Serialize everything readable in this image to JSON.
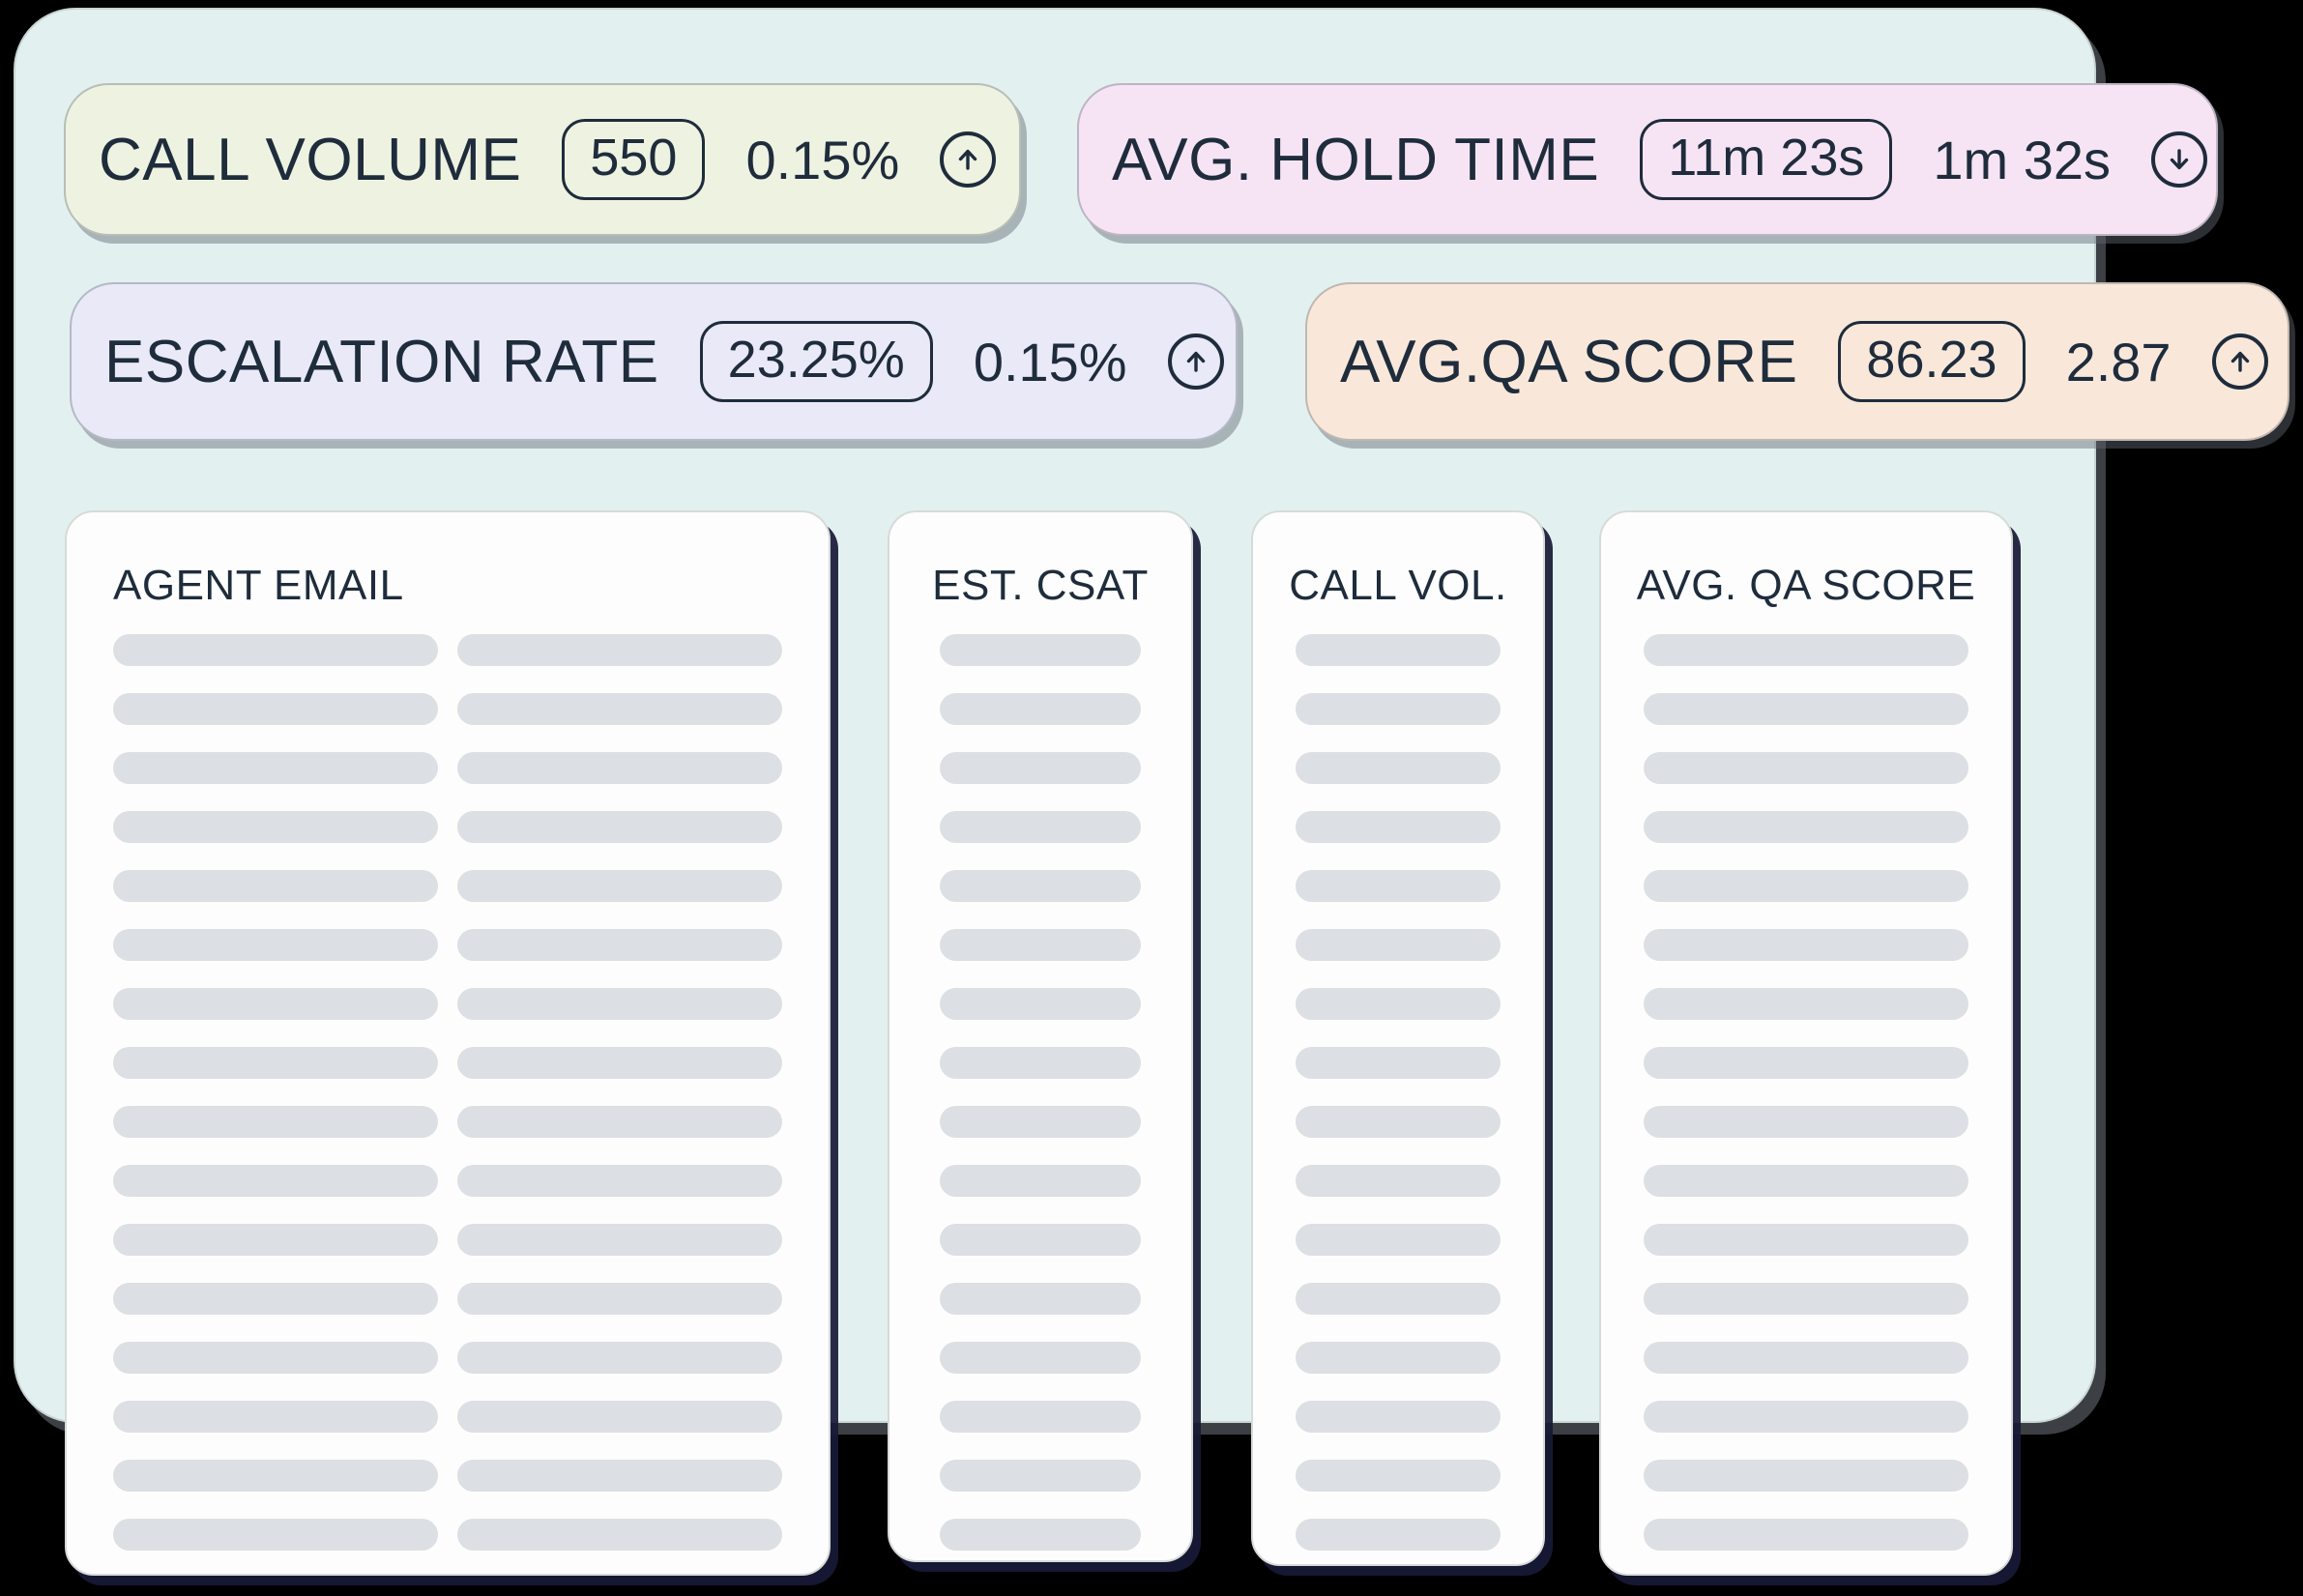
{
  "colors": {
    "background": "#000000",
    "panel_bg": "#e2f1f0",
    "text_navy": "#1e2c3c",
    "skeleton_gray": "#dcdfe3",
    "card_white": "#fdfdfd",
    "stat_call_volume_bg": "#eef2e0",
    "stat_avg_hold_time_bg": "#f6e4f4",
    "stat_escalation_rate_bg": "#e9e9f8",
    "stat_avg_qa_bg": "#f9e8da"
  },
  "stat_cards": [
    {
      "id": "call-volume",
      "label": "CALL VOLUME",
      "value": "550",
      "delta": "0.15%",
      "direction": "up",
      "bg": "#eef2e0"
    },
    {
      "id": "avg-hold-time",
      "label": "AVG. HOLD TIME",
      "value": "11m 23s",
      "delta": "1m 32s",
      "direction": "down",
      "bg": "#f6e4f4"
    },
    {
      "id": "escalation-rate",
      "label": "ESCALATION RATE",
      "value": "23.25%",
      "delta": "0.15%",
      "direction": "up",
      "bg": "#e9e9f8"
    },
    {
      "id": "avg-qa-score",
      "label": "AVG.QA SCORE",
      "value": "86.23",
      "delta": "2.87",
      "direction": "up",
      "bg": "#f9e8da"
    }
  ],
  "table": {
    "columns": [
      {
        "id": "agent-email",
        "header": "AGENT EMAIL",
        "skeleton_rows": 16,
        "bars_per_row": 2,
        "align": "left"
      },
      {
        "id": "est-csat",
        "header": "EST. CSAT",
        "skeleton_rows": 16,
        "bars_per_row": 1,
        "align": "center"
      },
      {
        "id": "call-vol",
        "header": "CALL VOL.",
        "skeleton_rows": 16,
        "bars_per_row": 1,
        "align": "center"
      },
      {
        "id": "avg-qa-score",
        "header": "AVG. QA SCORE",
        "skeleton_rows": 16,
        "bars_per_row": 1,
        "align": "center"
      }
    ]
  }
}
